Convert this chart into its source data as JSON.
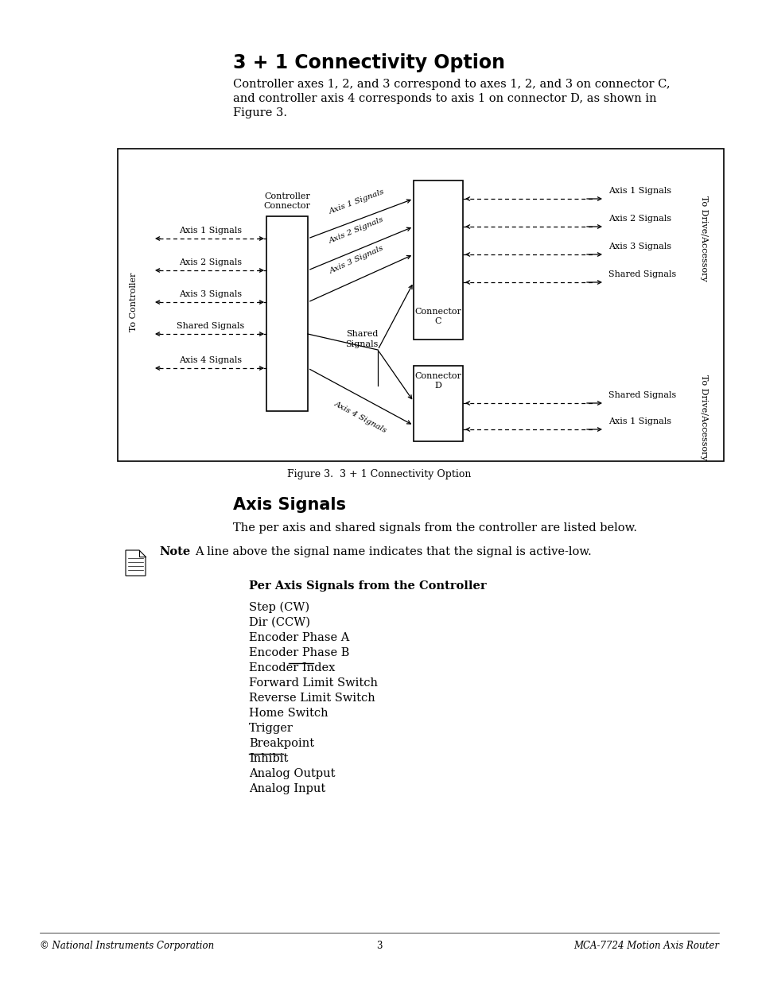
{
  "title": "3 + 1 Connectivity Option",
  "title_fontsize": 17,
  "body_text": "Controller axes 1, 2, and 3 correspond to axes 1, 2, and 3 on connector C,\nand controller axis 4 corresponds to axis 1 on connector D, as shown in\nFigure 3.",
  "body_fontsize": 10.5,
  "figure_caption": "Figure 3.  3 + 1 Connectivity Option",
  "section2_title": "Axis Signals",
  "section2_body": "The per axis and shared signals from the controller are listed below.",
  "note_label": "Note",
  "note_text": "A line above the signal name indicates that the signal is active-low.",
  "subsection_title": "Per Axis Signals from the Controller",
  "signal_list": [
    "Step (CW)",
    "Dir (CCW)",
    "Encoder Phase A",
    "Encoder Phase B",
    "Encoder Index",
    "Forward Limit Switch",
    "Reverse Limit Switch",
    "Home Switch",
    "Trigger",
    "Breakpoint",
    "Inhibit",
    "Analog Output",
    "Analog Input"
  ],
  "overline_signals": [
    "Encoder Index",
    "Inhibit"
  ],
  "overline_words": {
    "Encoder Index": "Index",
    "Inhibit": "Inhibit"
  },
  "footer_left": "© National Instruments Corporation",
  "footer_center": "3",
  "footer_right": "MCA-7724 Motion Axis Router",
  "bg_color": "#ffffff"
}
